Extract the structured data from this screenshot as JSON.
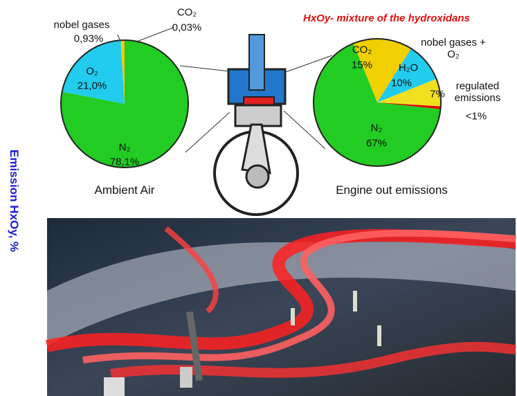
{
  "heading": "HxOy- mixture of the hydroxidans",
  "side_label": "Emission HxOy, %",
  "chart_data": [
    {
      "type": "pie",
      "title": "Ambient Air",
      "categories": [
        "N₂",
        "O₂",
        "nobel gases",
        "CO₂"
      ],
      "values": [
        78.1,
        21.0,
        0.93,
        0.03
      ],
      "value_labels": [
        "78,1%",
        "21,0%",
        "0,93%",
        "0,03%"
      ],
      "colors": [
        "#22cc22",
        "#22ccee",
        "#f0d000",
        "#e00000"
      ]
    },
    {
      "type": "pie",
      "title": "Engine out emissions",
      "categories": [
        "CO₂",
        "H₂O",
        "nobel gases + O₂",
        "regulated emissions",
        "N₂"
      ],
      "values": [
        15,
        10,
        7,
        0.7,
        67
      ],
      "value_labels": [
        "15%",
        "10%",
        "7%",
        "<1%",
        "67%"
      ],
      "colors": [
        "#f0d000",
        "#22ccee",
        "#f0e020",
        "#e00000",
        "#22cc22"
      ]
    }
  ]
}
